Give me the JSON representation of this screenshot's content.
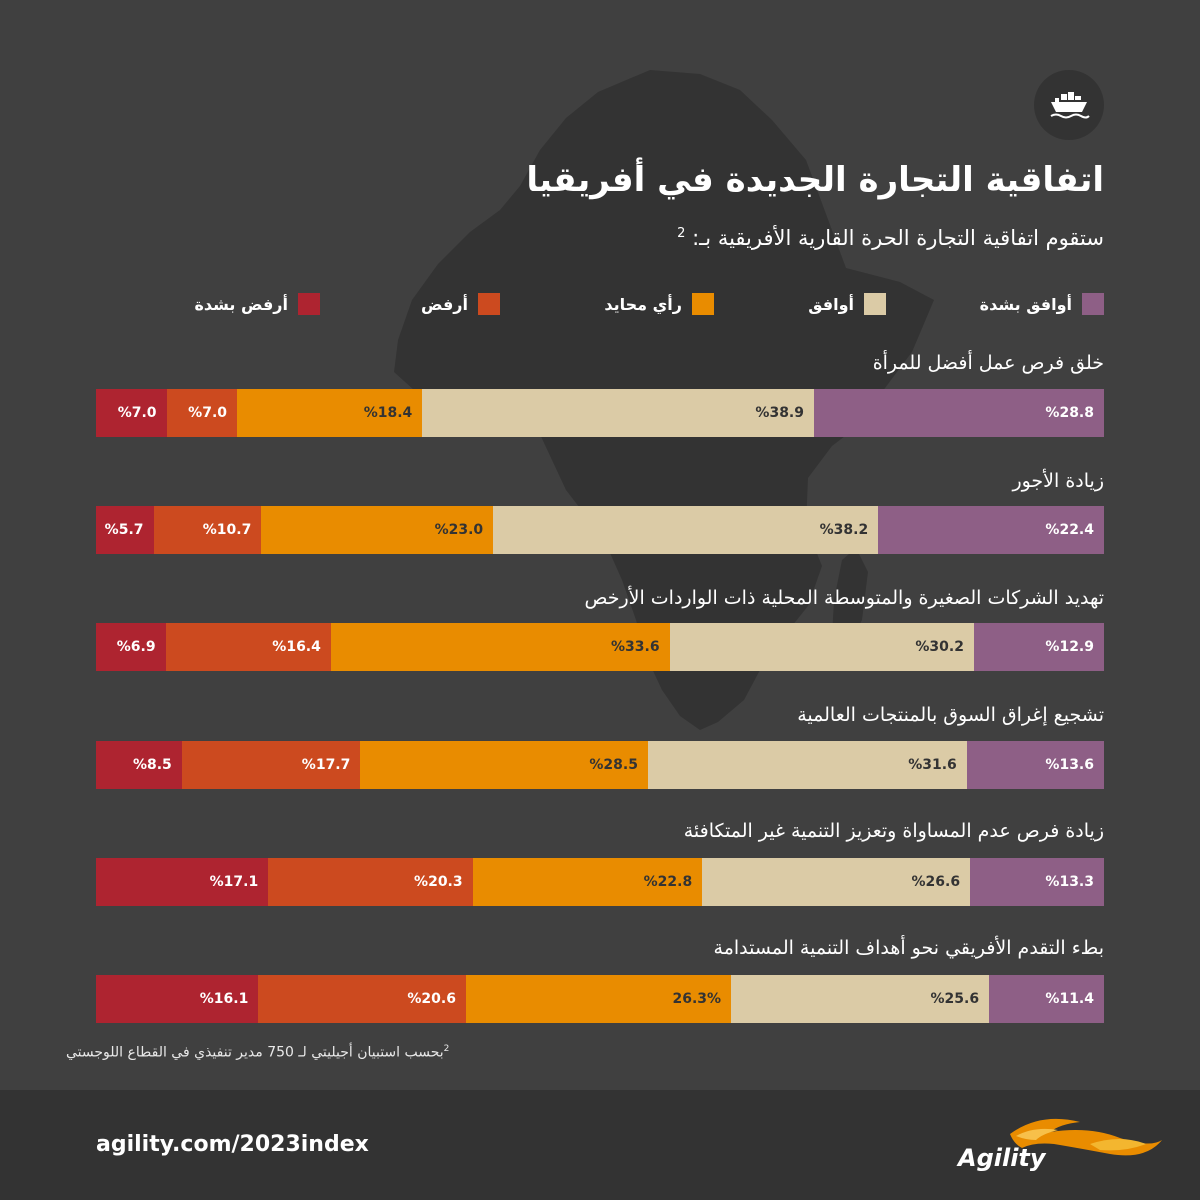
{
  "title": "اتفاقية التجارة الجديدة في أفريقيا",
  "subtitle": "ستقوم اتفاقية التجارة الحرة القارية الأفريقية بـ:",
  "subtitle_ref": "2",
  "icons": {
    "header": "cargo-ship-icon",
    "background": "africa-map"
  },
  "legend": [
    {
      "label": "أوافق بشدة",
      "color": "#8e5f86"
    },
    {
      "label": "أوافق",
      "color": "#dbcba6"
    },
    {
      "label": "رأي محايد",
      "color": "#e98c00"
    },
    {
      "label": "أرفض",
      "color": "#cc4a1f"
    },
    {
      "label": "أرفض بشدة",
      "color": "#ae2430"
    }
  ],
  "chart_data": {
    "type": "bar",
    "orientation": "horizontal-stacked",
    "unit": "%",
    "categories": [
      "خلق فرص عمل أفضل للمرأة",
      "زيادة الأجور",
      "تهديد الشركات الصغيرة والمتوسطة المحلية ذات الواردات الأرخص",
      "تشجيع إغراق السوق بالمنتجات العالمية",
      "زيادة فرص عدم المساواة وتعزيز التنمية غير المتكافئة",
      "بطء التقدم الأفريقي نحو أهداف التنمية المستدامة"
    ],
    "series": [
      {
        "name": "أوافق بشدة",
        "values": [
          28.8,
          22.4,
          12.9,
          13.6,
          13.3,
          11.4
        ],
        "labels": [
          "%28.8",
          "%22.4",
          "%12.9",
          "%13.6",
          "%13.3",
          "%11.4"
        ]
      },
      {
        "name": "أوافق",
        "values": [
          38.9,
          38.2,
          30.2,
          31.6,
          26.6,
          25.6
        ],
        "labels": [
          "%38.9",
          "%38.2",
          "%30.2",
          "%31.6",
          "%26.6",
          "%25.6"
        ]
      },
      {
        "name": "رأي محايد",
        "values": [
          18.4,
          23.0,
          33.6,
          28.5,
          22.8,
          26.3
        ],
        "labels": [
          "%18.4",
          "%23.0",
          "%33.6",
          "%28.5",
          "%22.8",
          "26.3%"
        ]
      },
      {
        "name": "أرفض",
        "values": [
          7.0,
          10.7,
          16.4,
          17.7,
          20.3,
          20.6
        ],
        "labels": [
          "%7.0",
          "%10.7",
          "%16.4",
          "%17.7",
          "%20.3",
          "%20.6"
        ]
      },
      {
        "name": "أرفض بشدة",
        "values": [
          7.0,
          5.7,
          6.9,
          8.5,
          17.1,
          16.1
        ],
        "labels": [
          "%7.0",
          "%5.7",
          "%6.9",
          "%8.5",
          "%17.1",
          "%16.1"
        ]
      }
    ]
  },
  "footnote": "بحسب استبيان أجيليتي لـ 750 مدير تنفيذي في القطاع اللوجستي",
  "footnote_ref": "2",
  "footer": {
    "url": "agility.com/2023index",
    "brand": "Agility",
    "logo_icon": "flame-swoosh-logo"
  }
}
